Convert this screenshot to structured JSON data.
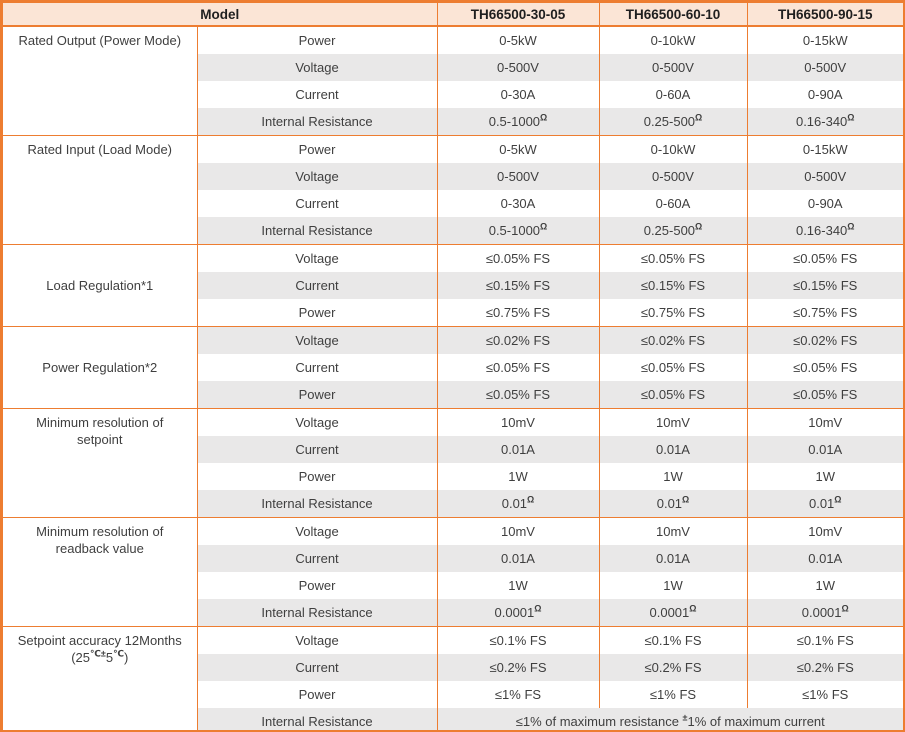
{
  "colors": {
    "border": "#ED7D31",
    "header_bg": "#FBE5D6",
    "band_bg": "#E9E8E8",
    "text": "#3F3F3F"
  },
  "header": {
    "model_label": "Model",
    "models": [
      "TH66500-30-05",
      "TH66500-60-10",
      "TH66500-90-15"
    ]
  },
  "sections": [
    {
      "label": "Rated Output (Power Mode)",
      "rows": [
        {
          "param": "Power",
          "values": [
            "0-5kW",
            "0-10kW",
            "0-15kW"
          ]
        },
        {
          "param": "Voltage",
          "values": [
            "0-500V",
            "0-500V",
            "0-500V"
          ]
        },
        {
          "param": "Current",
          "values": [
            "0-30A",
            "0-60A",
            "0-90A"
          ]
        },
        {
          "param": "Internal Resistance",
          "values": [
            "0.5-1000^Ω^",
            "0.25-500^Ω^",
            "0.16-340^Ω^"
          ]
        }
      ]
    },
    {
      "label": "Rated Input (Load Mode)",
      "rows": [
        {
          "param": "Power",
          "values": [
            "0-5kW",
            "0-10kW",
            "0-15kW"
          ]
        },
        {
          "param": "Voltage",
          "values": [
            "0-500V",
            "0-500V",
            "0-500V"
          ]
        },
        {
          "param": "Current",
          "values": [
            "0-30A",
            "0-60A",
            "0-90A"
          ]
        },
        {
          "param": "Internal Resistance",
          "values": [
            "0.5-1000^Ω^",
            "0.25-500^Ω^",
            "0.16-340^Ω^"
          ]
        }
      ]
    },
    {
      "label": "Load Regulation*1",
      "rows": [
        {
          "param": "Voltage",
          "values": [
            "≤0.05% FS",
            "≤0.05% FS",
            "≤0.05% FS"
          ]
        },
        {
          "param": "Current",
          "values": [
            "≤0.15% FS",
            "≤0.15% FS",
            "≤0.15% FS"
          ]
        },
        {
          "param": "Power",
          "values": [
            "≤0.75% FS",
            "≤0.75% FS",
            "≤0.75% FS"
          ]
        }
      ]
    },
    {
      "label": "Power Regulation*2",
      "rows": [
        {
          "param": "Voltage",
          "values": [
            "≤0.02% FS",
            "≤0.02% FS",
            "≤0.02% FS"
          ]
        },
        {
          "param": "Current",
          "values": [
            "≤0.05% FS",
            "≤0.05% FS",
            "≤0.05% FS"
          ]
        },
        {
          "param": "Power",
          "values": [
            "≤0.05% FS",
            "≤0.05% FS",
            "≤0.05% FS"
          ]
        }
      ]
    },
    {
      "label": "Minimum resolution of\nsetpoint",
      "rows": [
        {
          "param": "Voltage",
          "values": [
            "10mV",
            "10mV",
            "10mV"
          ]
        },
        {
          "param": "Current",
          "values": [
            "0.01A",
            "0.01A",
            "0.01A"
          ]
        },
        {
          "param": "Power",
          "values": [
            "1W",
            "1W",
            "1W"
          ]
        },
        {
          "param": "Internal Resistance",
          "values": [
            "0.01^Ω^",
            "0.01^Ω^",
            "0.01^Ω^"
          ]
        }
      ]
    },
    {
      "label": "Minimum resolution of\nreadback value",
      "rows": [
        {
          "param": "Voltage",
          "values": [
            "10mV",
            "10mV",
            "10mV"
          ]
        },
        {
          "param": "Current",
          "values": [
            "0.01A",
            "0.01A",
            "0.01A"
          ]
        },
        {
          "param": "Power",
          "values": [
            "1W",
            "1W",
            "1W"
          ]
        },
        {
          "param": "Internal Resistance",
          "values": [
            "0.0001^Ω^",
            "0.0001^Ω^",
            "0.0001^Ω^"
          ]
        }
      ]
    },
    {
      "label": "Setpoint accuracy 12Months\n(25^℃±^5^℃^)",
      "rows": [
        {
          "param": "Voltage",
          "values": [
            "≤0.1% FS",
            "≤0.1% FS",
            "≤0.1% FS"
          ]
        },
        {
          "param": "Current",
          "values": [
            "≤0.2% FS",
            "≤0.2% FS",
            "≤0.2% FS"
          ]
        },
        {
          "param": "Power",
          "values": [
            "≤1% FS",
            "≤1% FS",
            "≤1% FS"
          ]
        },
        {
          "param": "Internal Resistance",
          "merged_value": "≤1% of maximum resistance ^±^1% of maximum current"
        }
      ]
    }
  ]
}
